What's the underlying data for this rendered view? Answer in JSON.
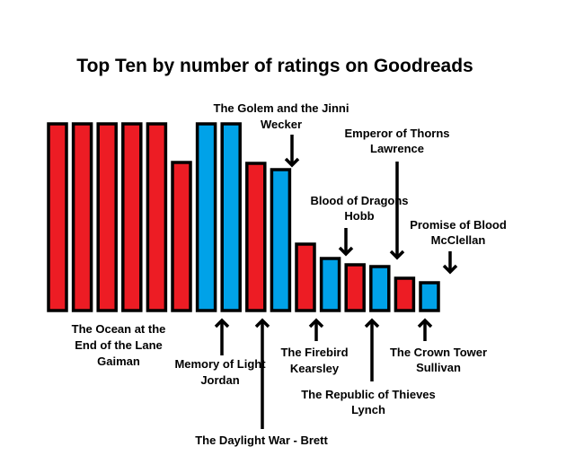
{
  "chart_data": {
    "type": "bar",
    "title": "Top Ten by number of ratings on Goodreads",
    "xlabel": "",
    "ylabel": "",
    "grid": false,
    "legend": "none",
    "colors": {
      "red": "#ed1c24",
      "blue": "#00a2e8",
      "outline": "#000000"
    },
    "bars": [
      {
        "color": "red",
        "value": 208
      },
      {
        "color": "red",
        "value": 208
      },
      {
        "color": "red",
        "value": 208
      },
      {
        "color": "red",
        "value": 208
      },
      {
        "color": "red",
        "value": 208
      },
      {
        "color": "red",
        "value": 165
      },
      {
        "color": "blue",
        "value": 208
      },
      {
        "color": "blue",
        "value": 208
      },
      {
        "color": "red",
        "value": 164
      },
      {
        "color": "blue",
        "value": 157
      },
      {
        "color": "red",
        "value": 74
      },
      {
        "color": "blue",
        "value": 58
      },
      {
        "color": "red",
        "value": 51
      },
      {
        "color": "blue",
        "value": 49
      },
      {
        "color": "red",
        "value": 36
      },
      {
        "color": "blue",
        "value": 31
      }
    ],
    "annotations": [
      {
        "lines": [
          "The Ocean at the",
          "End of the Lane",
          "Gaiman"
        ]
      },
      {
        "lines": [
          "Memory of Light",
          "Jordan"
        ]
      },
      {
        "lines": [
          "The Daylight War - Brett"
        ]
      },
      {
        "lines": [
          "The Golem and the Jinni",
          "Wecker"
        ]
      },
      {
        "lines": [
          "The Firebird",
          "Kearsley"
        ]
      },
      {
        "lines": [
          "Blood of Dragons",
          "Hobb"
        ]
      },
      {
        "lines": [
          "The Republic of Thieves",
          "Lynch"
        ]
      },
      {
        "lines": [
          "Emperor of Thorns",
          "Lawrence"
        ]
      },
      {
        "lines": [
          "The Crown Tower",
          "Sullivan"
        ]
      },
      {
        "lines": [
          "Promise of Blood",
          "McClellan"
        ]
      }
    ]
  }
}
